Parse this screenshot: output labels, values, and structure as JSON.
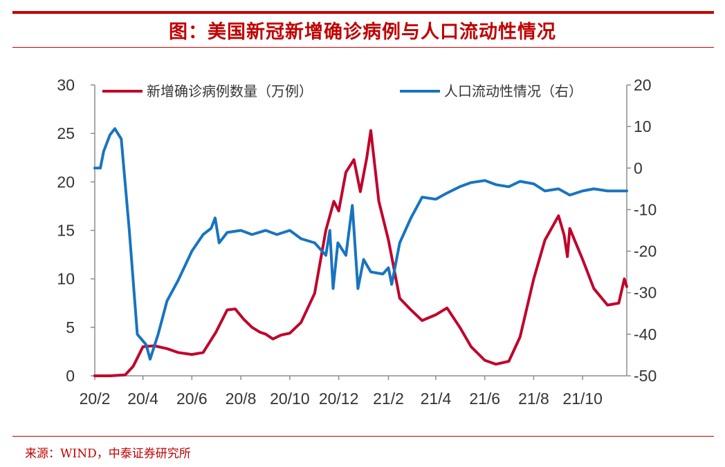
{
  "header": {
    "title": "图：美国新冠新增确诊病例与人口流动性情况"
  },
  "footer": {
    "source": "来源：WIND，中泰证券研究所"
  },
  "colors": {
    "accent": "#c00000",
    "series_cases": "#c0002a",
    "series_mobility": "#1874c0"
  },
  "chart_data": {
    "type": "line",
    "title": "",
    "x_tick_labels": [
      "20/2",
      "20/4",
      "20/6",
      "20/8",
      "20/10",
      "20/12",
      "21/2",
      "21/4",
      "21/6",
      "21/8",
      "21/10"
    ],
    "y_left_ticks": [
      "0",
      "5",
      "10",
      "15",
      "20",
      "25",
      "30"
    ],
    "y_right_ticks": [
      "-50",
      "-40",
      "-30",
      "-20",
      "-10",
      "0",
      "10",
      "20"
    ],
    "y_left_range": [
      0,
      30
    ],
    "y_right_range": [
      -50,
      20
    ],
    "legend_position": "top",
    "grid": false,
    "series": [
      {
        "name": "新增确诊病例数量（万例）",
        "axis": "left",
        "points": [
          [
            "2020-02-01",
            0
          ],
          [
            "2020-02-20",
            0
          ],
          [
            "2020-03-10",
            0.1
          ],
          [
            "2020-03-20",
            1.0
          ],
          [
            "2020-04-01",
            3.0
          ],
          [
            "2020-04-15",
            3.1
          ],
          [
            "2020-05-01",
            2.8
          ],
          [
            "2020-05-15",
            2.4
          ],
          [
            "2020-06-01",
            2.2
          ],
          [
            "2020-06-15",
            2.4
          ],
          [
            "2020-07-01",
            4.5
          ],
          [
            "2020-07-15",
            6.8
          ],
          [
            "2020-07-25",
            6.9
          ],
          [
            "2020-08-05",
            5.8
          ],
          [
            "2020-08-15",
            5.0
          ],
          [
            "2020-08-25",
            4.5
          ],
          [
            "2020-09-01",
            4.3
          ],
          [
            "2020-09-10",
            3.8
          ],
          [
            "2020-09-20",
            4.2
          ],
          [
            "2020-10-01",
            4.4
          ],
          [
            "2020-10-15",
            5.5
          ],
          [
            "2020-11-01",
            8.5
          ],
          [
            "2020-11-15",
            15.0
          ],
          [
            "2020-11-25",
            18.0
          ],
          [
            "2020-12-01",
            17.0
          ],
          [
            "2020-12-10",
            21.0
          ],
          [
            "2020-12-20",
            22.3
          ],
          [
            "2020-12-28",
            19.0
          ],
          [
            "2021-01-05",
            22.5
          ],
          [
            "2021-01-10",
            25.3
          ],
          [
            "2021-01-20",
            18.0
          ],
          [
            "2021-02-01",
            14.0
          ],
          [
            "2021-02-15",
            8.0
          ],
          [
            "2021-03-01",
            6.8
          ],
          [
            "2021-03-15",
            5.7
          ],
          [
            "2021-04-01",
            6.3
          ],
          [
            "2021-04-15",
            7.0
          ],
          [
            "2021-05-01",
            5.0
          ],
          [
            "2021-05-15",
            3.0
          ],
          [
            "2021-06-01",
            1.6
          ],
          [
            "2021-06-15",
            1.2
          ],
          [
            "2021-07-01",
            1.5
          ],
          [
            "2021-07-15",
            4.0
          ],
          [
            "2021-08-01",
            10.0
          ],
          [
            "2021-08-15",
            14.0
          ],
          [
            "2021-09-01",
            16.5
          ],
          [
            "2021-09-08",
            14.5
          ],
          [
            "2021-09-12",
            12.3
          ],
          [
            "2021-09-15",
            15.2
          ],
          [
            "2021-10-01",
            12.0
          ],
          [
            "2021-10-15",
            9.0
          ],
          [
            "2021-11-01",
            7.3
          ],
          [
            "2021-11-15",
            7.5
          ],
          [
            "2021-11-22",
            10.0
          ],
          [
            "2021-11-25",
            9.2
          ]
        ]
      },
      {
        "name": "人口流动性情况（右）",
        "axis": "right",
        "points": [
          [
            "2020-02-01",
            0
          ],
          [
            "2020-02-08",
            0
          ],
          [
            "2020-02-12",
            4.0
          ],
          [
            "2020-02-20",
            8.0
          ],
          [
            "2020-02-26",
            9.5
          ],
          [
            "2020-03-05",
            7.0
          ],
          [
            "2020-03-15",
            -15.0
          ],
          [
            "2020-03-25",
            -40.0
          ],
          [
            "2020-04-05",
            -42.5
          ],
          [
            "2020-04-10",
            -46.0
          ],
          [
            "2020-04-20",
            -40.0
          ],
          [
            "2020-05-01",
            -32.0
          ],
          [
            "2020-05-15",
            -27.0
          ],
          [
            "2020-06-01",
            -20.0
          ],
          [
            "2020-06-15",
            -16.0
          ],
          [
            "2020-06-25",
            -14.5
          ],
          [
            "2020-06-30",
            -12.0
          ],
          [
            "2020-07-05",
            -18.0
          ],
          [
            "2020-07-15",
            -15.5
          ],
          [
            "2020-08-01",
            -15.0
          ],
          [
            "2020-08-15",
            -16.0
          ],
          [
            "2020-09-01",
            -15.0
          ],
          [
            "2020-09-15",
            -16.0
          ],
          [
            "2020-10-01",
            -15.0
          ],
          [
            "2020-10-15",
            -17.0
          ],
          [
            "2020-11-01",
            -18.0
          ],
          [
            "2020-11-15",
            -21.0
          ],
          [
            "2020-11-20",
            -15.0
          ],
          [
            "2020-11-24",
            -29.0
          ],
          [
            "2020-11-30",
            -18.0
          ],
          [
            "2020-12-10",
            -21.0
          ],
          [
            "2020-12-18",
            -9.0
          ],
          [
            "2020-12-25",
            -29.0
          ],
          [
            "2021-01-01",
            -22.0
          ],
          [
            "2021-01-10",
            -25.0
          ],
          [
            "2021-01-25",
            -25.5
          ],
          [
            "2021-02-01",
            -24.0
          ],
          [
            "2021-02-05",
            -28.0
          ],
          [
            "2021-02-15",
            -18.0
          ],
          [
            "2021-03-01",
            -12.0
          ],
          [
            "2021-03-15",
            -7.0
          ],
          [
            "2021-04-01",
            -7.5
          ],
          [
            "2021-04-15",
            -6.0
          ],
          [
            "2021-05-01",
            -4.5
          ],
          [
            "2021-05-15",
            -3.5
          ],
          [
            "2021-06-01",
            -3.0
          ],
          [
            "2021-06-15",
            -4.0
          ],
          [
            "2021-07-01",
            -4.5
          ],
          [
            "2021-07-15",
            -3.2
          ],
          [
            "2021-08-01",
            -3.8
          ],
          [
            "2021-08-15",
            -5.5
          ],
          [
            "2021-09-01",
            -5.0
          ],
          [
            "2021-09-15",
            -6.5
          ],
          [
            "2021-10-01",
            -5.5
          ],
          [
            "2021-10-15",
            -5.0
          ],
          [
            "2021-11-01",
            -5.5
          ],
          [
            "2021-11-25",
            -5.5
          ]
        ]
      }
    ]
  }
}
